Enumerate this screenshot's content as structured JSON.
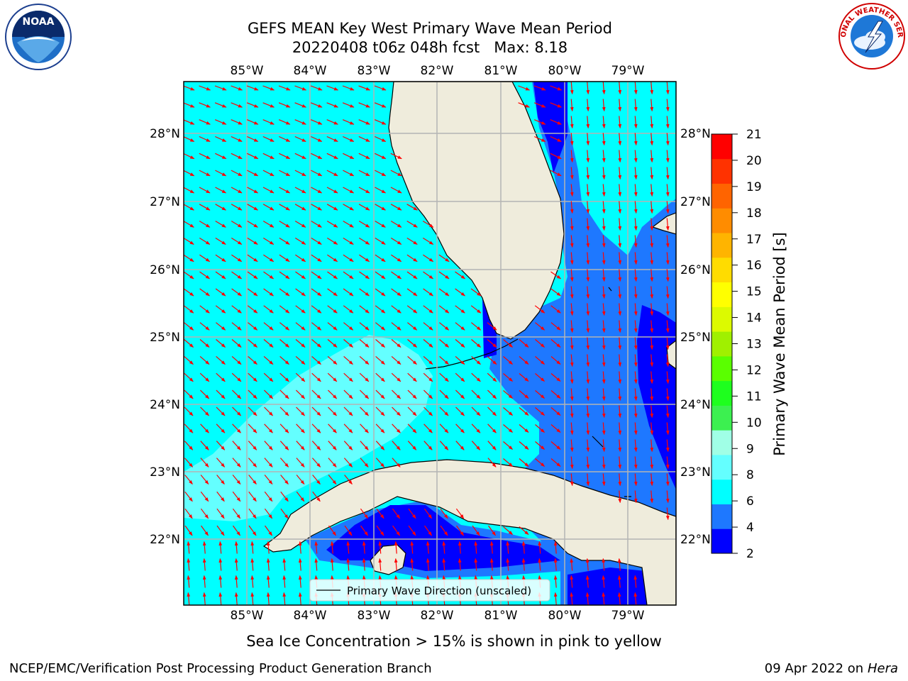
{
  "header": {
    "title_line1": "GEFS MEAN Key West Primary Wave Mean Period",
    "title_line2": "20220408 t06z 048h fcst   Max: 8.18"
  },
  "logos": {
    "noaa_text": "NOAA",
    "nws_text": "NATIONAL WEATHER SERVICE"
  },
  "map": {
    "lon_labels": [
      "85°W",
      "84°W",
      "83°W",
      "82°W",
      "81°W",
      "80°W",
      "79°W"
    ],
    "lat_labels": [
      "28°N",
      "27°N",
      "26°N",
      "25°N",
      "24°N",
      "23°N",
      "22°N"
    ],
    "legend_label": "Primary Wave Direction (unscaled)"
  },
  "colorbar": {
    "label": "Primary Wave Mean Period [s]",
    "ticks": [
      "2",
      "4",
      "6",
      "8",
      "9",
      "10",
      "11",
      "12",
      "13",
      "14",
      "15",
      "16",
      "17",
      "18",
      "19",
      "20",
      "21"
    ],
    "colors": [
      "#0000ff",
      "#1e78ff",
      "#00ffff",
      "#64ffff",
      "#a0ffe6",
      "#3cf050",
      "#1eff1e",
      "#5aff00",
      "#a0f000",
      "#dcfa00",
      "#ffff00",
      "#ffdc00",
      "#ffb400",
      "#ff8c00",
      "#ff6400",
      "#ff3200",
      "#ff0000"
    ]
  },
  "caption": "Sea Ice Concentration > 15% is shown in pink to yellow",
  "footer": {
    "left": "NCEP/EMC/Verification Post Processing Product Generation Branch",
    "right_date": "09 Apr 2022 on ",
    "right_host": "Hera"
  }
}
